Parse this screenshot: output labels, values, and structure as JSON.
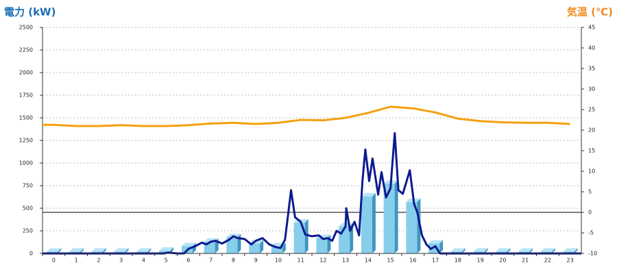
{
  "chart_data": {
    "type": "bar",
    "y_title": "電力 (kW)",
    "y2_title": "気温 (℃)",
    "categories": [
      "0",
      "1",
      "2",
      "3",
      "4",
      "5",
      "6",
      "7",
      "8",
      "9",
      "10",
      "11",
      "12",
      "13",
      "14",
      "15",
      "16",
      "17",
      "18",
      "19",
      "20",
      "21",
      "22",
      "23"
    ],
    "ylim": [
      0,
      2500
    ],
    "yticks": [
      0,
      250,
      500,
      750,
      1000,
      1250,
      1500,
      1750,
      2000,
      2250,
      2500
    ],
    "y2lim": [
      -10,
      45
    ],
    "y2ticks": [
      -10,
      -5,
      0,
      5,
      10,
      15,
      20,
      25,
      30,
      35,
      40,
      45
    ],
    "grid": true,
    "series": [
      {
        "type": "bar",
        "color": "#87ceeb",
        "values": [
          20,
          20,
          20,
          20,
          20,
          30,
          80,
          130,
          180,
          110,
          80,
          340,
          170,
          300,
          630,
          770,
          570,
          110,
          20,
          20,
          20,
          20,
          20,
          20
        ]
      },
      {
        "type": "line",
        "color": "#0d1a8f",
        "x": [
          -0.5,
          4.9,
          5.1,
          5.5,
          5.8,
          6,
          6.3,
          6.6,
          6.8,
          7,
          7.2,
          7.5,
          7.8,
          8,
          8.2,
          8.5,
          8.8,
          9,
          9.3,
          9.6,
          9.9,
          10.1,
          10.3,
          10.45,
          10.57,
          10.75,
          11,
          11.2,
          11.5,
          11.8,
          12,
          12.2,
          12.4,
          12.6,
          12.8,
          13,
          13.03,
          13.2,
          13.4,
          13.6,
          13.75,
          13.88,
          14.05,
          14.2,
          14.45,
          14.6,
          14.8,
          15,
          15.19,
          15.35,
          15.55,
          15.86,
          16.05,
          16.2,
          16.4,
          16.6,
          16.8,
          17,
          17.2,
          17.4,
          17.6,
          23.5
        ],
        "values": [
          0,
          0,
          10,
          0,
          0,
          50,
          80,
          120,
          100,
          130,
          140,
          110,
          150,
          190,
          170,
          160,
          100,
          140,
          170,
          100,
          70,
          60,
          150,
          450,
          700,
          400,
          350,
          210,
          190,
          200,
          160,
          170,
          140,
          250,
          220,
          300,
          500,
          250,
          350,
          200,
          800,
          1150,
          800,
          1050,
          650,
          900,
          620,
          720,
          1330,
          700,
          660,
          920,
          550,
          450,
          200,
          100,
          50,
          80,
          0,
          0,
          0,
          0
        ]
      },
      {
        "type": "line",
        "axis": "y2",
        "color": "#f5a00f",
        "x": [
          -0.5,
          0,
          1,
          2,
          3,
          4,
          5,
          6,
          7,
          8,
          9,
          10,
          11,
          12,
          13,
          14,
          15,
          16,
          17,
          18,
          19,
          20,
          21,
          22,
          23
        ],
        "values": [
          21.3,
          21.3,
          21.0,
          21.0,
          21.2,
          21.0,
          21.0,
          21.2,
          21.6,
          21.8,
          21.5,
          21.8,
          22.5,
          22.4,
          23.0,
          24.2,
          25.7,
          25.3,
          24.3,
          22.8,
          22.2,
          21.9,
          21.8,
          21.8,
          21.5
        ]
      }
    ]
  }
}
